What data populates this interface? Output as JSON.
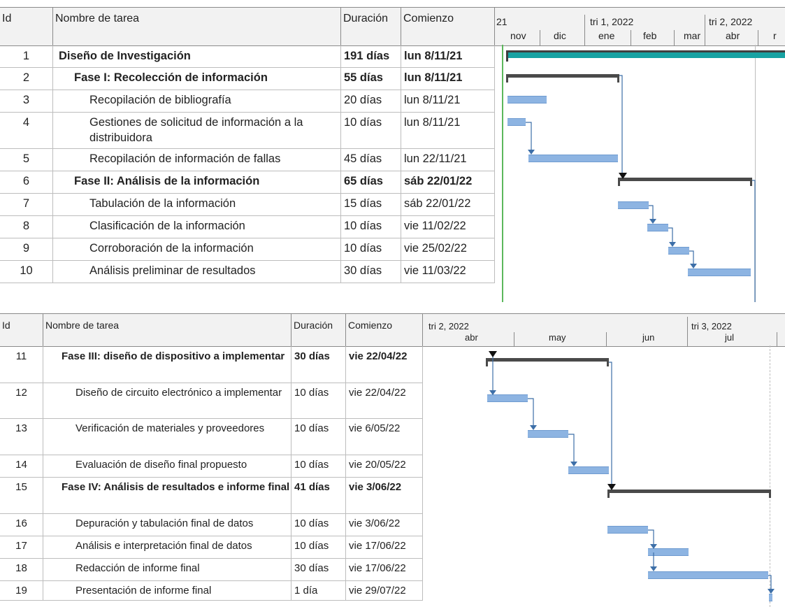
{
  "table1": {
    "headers": {
      "id": "Id",
      "name": "Nombre de tarea",
      "duration": "Duración",
      "start": "Comienzo"
    },
    "timescale_top": [
      "21",
      "tri 1, 2022",
      "tri 2, 2022"
    ],
    "timescale_bottom": [
      "nov",
      "dic",
      "ene",
      "feb",
      "mar",
      "abr",
      "r"
    ],
    "rows": [
      {
        "id": "1",
        "name": "Diseño de Investigación",
        "duration": "191 días",
        "start": "lun 8/11/21"
      },
      {
        "id": "2",
        "name": "Fase I: Recolección de información",
        "duration": "55 días",
        "start": "lun 8/11/21"
      },
      {
        "id": "3",
        "name": "Recopilación de bibliografía",
        "duration": "20 días",
        "start": "lun 8/11/21"
      },
      {
        "id": "4",
        "name": "Gestiones de solicitud de información a la distribuidora",
        "duration": "10 días",
        "start": "lun 8/11/21"
      },
      {
        "id": "5",
        "name": "Recopilación de información de fallas",
        "duration": "45 días",
        "start": "lun 22/11/21"
      },
      {
        "id": "6",
        "name": "Fase II: Análisis de la información",
        "duration": "65 días",
        "start": "sáb 22/01/22"
      },
      {
        "id": "7",
        "name": "Tabulación de la información",
        "duration": "15 días",
        "start": "sáb 22/01/22"
      },
      {
        "id": "8",
        "name": "Clasificación de la información",
        "duration": "10 días",
        "start": "vie 11/02/22"
      },
      {
        "id": "9",
        "name": "Corroboración de la información",
        "duration": "10 días",
        "start": "vie 25/02/22"
      },
      {
        "id": "10",
        "name": "Análisis preliminar de resultados",
        "duration": "30 días",
        "start": "vie 11/03/22"
      }
    ]
  },
  "table2": {
    "headers": {
      "id": "Id",
      "name": "Nombre de tarea",
      "duration": "Duración",
      "start": "Comienzo"
    },
    "timescale_top": [
      "tri 2, 2022",
      "tri 3, 2022"
    ],
    "timescale_bottom": [
      "abr",
      "may",
      "jun",
      "jul"
    ],
    "rows": [
      {
        "id": "11",
        "name": "Fase III: diseño de dispositivo a implementar",
        "duration": "30 días",
        "start": "vie 22/04/22"
      },
      {
        "id": "12",
        "name": "Diseño de circuito electrónico a implementar",
        "duration": "10 días",
        "start": "vie 22/04/22"
      },
      {
        "id": "13",
        "name": "Verificación de materiales y proveedores",
        "duration": "10 días",
        "start": "vie 6/05/22"
      },
      {
        "id": "14",
        "name": "Evaluación de diseño final propuesto",
        "duration": "10 días",
        "start": "vie 20/05/22"
      },
      {
        "id": "15",
        "name": "Fase IV: Análisis de resultados e informe final",
        "duration": "41 días",
        "start": "vie 3/06/22"
      },
      {
        "id": "16",
        "name": "Depuración y tabulación final de datos",
        "duration": "10 días",
        "start": "vie 3/06/22"
      },
      {
        "id": "17",
        "name": "Análisis e interpretación final de datos",
        "duration": "10 días",
        "start": "vie 17/06/22"
      },
      {
        "id": "18",
        "name": "Redacción de informe final",
        "duration": "30 días",
        "start": "vie 17/06/22"
      },
      {
        "id": "19",
        "name": "Presentación de informe final",
        "duration": "1 día",
        "start": "vie 29/07/22"
      }
    ]
  },
  "colors": {
    "task_bar": "#8db4e2",
    "summary_bar": "#4a4a4a",
    "project_bar": "#17a2a2",
    "arrow": "#2e75b6",
    "today_line": "#5cb85c"
  }
}
